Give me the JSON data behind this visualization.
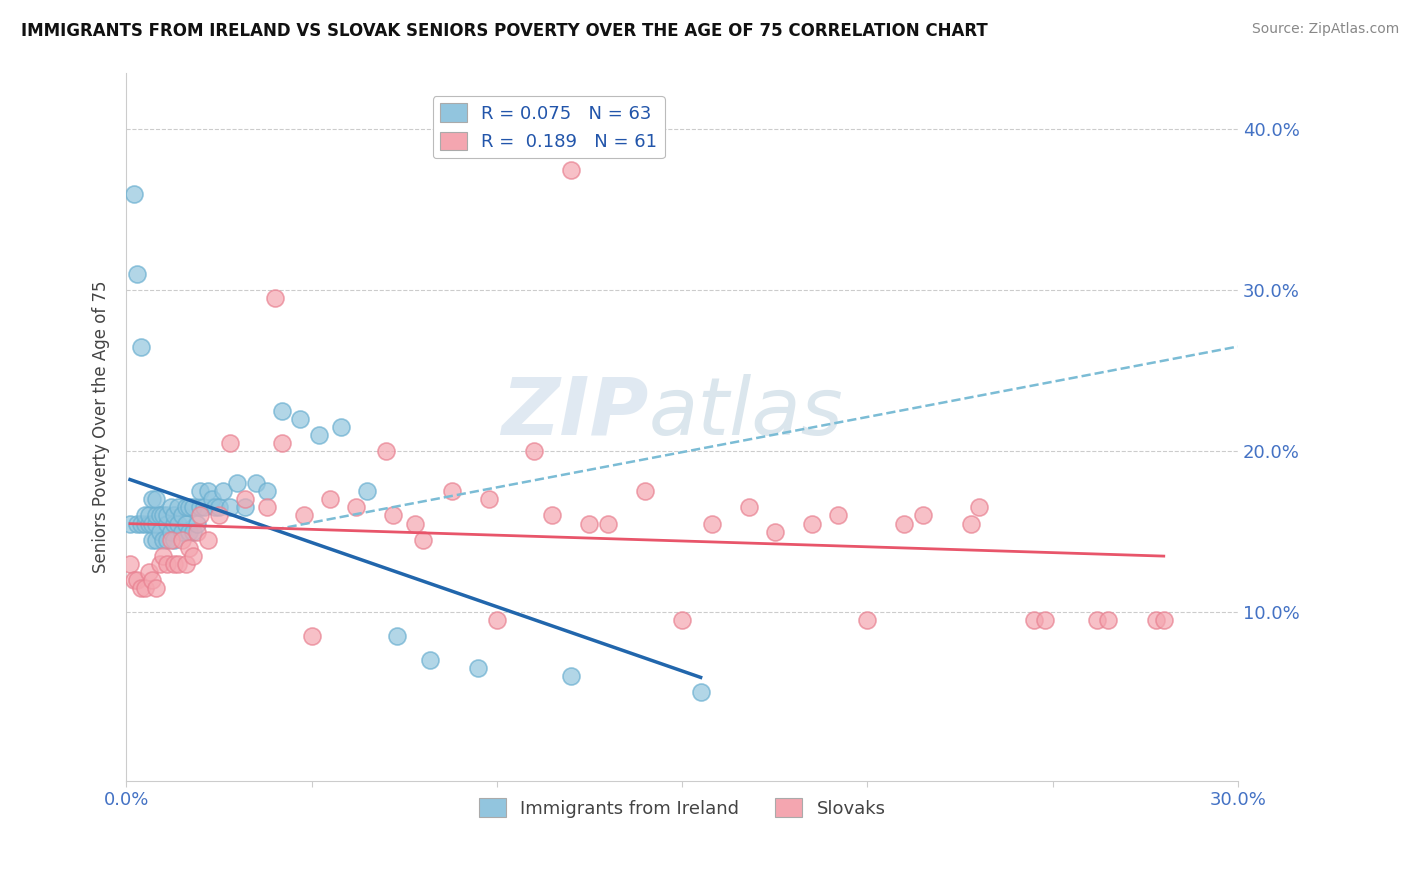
{
  "title": "IMMIGRANTS FROM IRELAND VS SLOVAK SENIORS POVERTY OVER THE AGE OF 75 CORRELATION CHART",
  "source": "Source: ZipAtlas.com",
  "ylabel": "Seniors Poverty Over the Age of 75",
  "xlim": [
    0.0,
    0.3
  ],
  "ylim": [
    -0.005,
    0.435
  ],
  "ireland_color": "#92C5DE",
  "irish_edge_color": "#6AAFD0",
  "slovak_color": "#F4A6B0",
  "slovak_edge_color": "#E88090",
  "ireland_line_color": "#2166AC",
  "slovak_line_color": "#E8556A",
  "dashed_line_color": "#7BBCD5",
  "background_color": "#FFFFFF",
  "grid_color": "#CCCCCC",
  "ireland_x": [
    0.001,
    0.002,
    0.003,
    0.003,
    0.004,
    0.004,
    0.005,
    0.005,
    0.006,
    0.006,
    0.007,
    0.007,
    0.007,
    0.008,
    0.008,
    0.008,
    0.008,
    0.009,
    0.009,
    0.01,
    0.01,
    0.011,
    0.011,
    0.011,
    0.012,
    0.012,
    0.013,
    0.013,
    0.013,
    0.014,
    0.014,
    0.015,
    0.015,
    0.016,
    0.016,
    0.017,
    0.017,
    0.018,
    0.018,
    0.019,
    0.02,
    0.02,
    0.021,
    0.022,
    0.023,
    0.024,
    0.025,
    0.026,
    0.028,
    0.03,
    0.032,
    0.035,
    0.038,
    0.042,
    0.047,
    0.052,
    0.058,
    0.065,
    0.073,
    0.082,
    0.095,
    0.12,
    0.155
  ],
  "ireland_y": [
    0.155,
    0.36,
    0.31,
    0.155,
    0.265,
    0.155,
    0.155,
    0.16,
    0.155,
    0.16,
    0.145,
    0.155,
    0.17,
    0.145,
    0.155,
    0.16,
    0.17,
    0.15,
    0.16,
    0.145,
    0.16,
    0.145,
    0.155,
    0.16,
    0.15,
    0.165,
    0.145,
    0.155,
    0.16,
    0.155,
    0.165,
    0.15,
    0.16,
    0.155,
    0.165,
    0.15,
    0.165,
    0.15,
    0.165,
    0.155,
    0.165,
    0.175,
    0.165,
    0.175,
    0.17,
    0.165,
    0.165,
    0.175,
    0.165,
    0.18,
    0.165,
    0.18,
    0.175,
    0.225,
    0.22,
    0.21,
    0.215,
    0.175,
    0.085,
    0.07,
    0.065,
    0.06,
    0.05
  ],
  "slovak_x": [
    0.001,
    0.002,
    0.003,
    0.004,
    0.005,
    0.006,
    0.007,
    0.008,
    0.009,
    0.01,
    0.011,
    0.012,
    0.013,
    0.014,
    0.015,
    0.016,
    0.017,
    0.018,
    0.019,
    0.02,
    0.022,
    0.025,
    0.028,
    0.032,
    0.038,
    0.042,
    0.048,
    0.055,
    0.062,
    0.07,
    0.078,
    0.088,
    0.098,
    0.11,
    0.125,
    0.14,
    0.158,
    0.175,
    0.192,
    0.21,
    0.228,
    0.245,
    0.262,
    0.278,
    0.072,
    0.08,
    0.1,
    0.115,
    0.13,
    0.15,
    0.168,
    0.185,
    0.2,
    0.215,
    0.23,
    0.248,
    0.265,
    0.28,
    0.12,
    0.05,
    0.04
  ],
  "slovak_y": [
    0.13,
    0.12,
    0.12,
    0.115,
    0.115,
    0.125,
    0.12,
    0.115,
    0.13,
    0.135,
    0.13,
    0.145,
    0.13,
    0.13,
    0.145,
    0.13,
    0.14,
    0.135,
    0.15,
    0.16,
    0.145,
    0.16,
    0.205,
    0.17,
    0.165,
    0.205,
    0.16,
    0.17,
    0.165,
    0.2,
    0.155,
    0.175,
    0.17,
    0.2,
    0.155,
    0.175,
    0.155,
    0.15,
    0.16,
    0.155,
    0.155,
    0.095,
    0.095,
    0.095,
    0.16,
    0.145,
    0.095,
    0.16,
    0.155,
    0.095,
    0.165,
    0.155,
    0.095,
    0.16,
    0.165,
    0.095,
    0.095,
    0.095,
    0.375,
    0.085,
    0.295
  ]
}
